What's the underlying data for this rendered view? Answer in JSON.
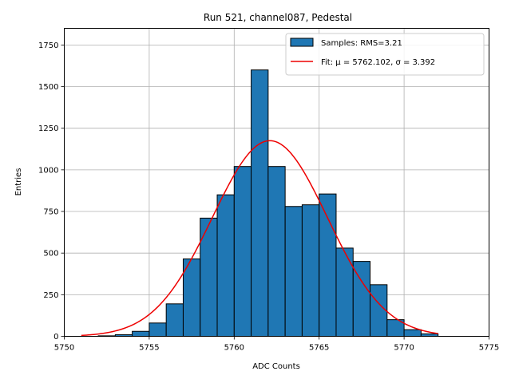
{
  "chart_data": {
    "type": "bar",
    "title": "Run 521, channel087, Pedestal",
    "xlabel": "ADC Counts",
    "ylabel": "Entries",
    "xlim": [
      5750,
      5775
    ],
    "ylim": [
      0,
      1850
    ],
    "xticks": [
      5750,
      5755,
      5760,
      5765,
      5770,
      5775
    ],
    "yticks": [
      0,
      250,
      500,
      750,
      1000,
      1250,
      1500,
      1750
    ],
    "grid": true,
    "legend_position": "top-right",
    "histogram": {
      "name": "Samples: RMS=3.21",
      "color": "#1f77b4",
      "edge_color": "#000000",
      "bin_edges": [
        5752,
        5753,
        5754,
        5755,
        5756,
        5757,
        5758,
        5759,
        5760,
        5761,
        5762,
        5763,
        5764,
        5765,
        5766,
        5767,
        5768,
        5769,
        5770,
        5771,
        5772
      ],
      "counts": [
        3,
        10,
        30,
        80,
        195,
        465,
        710,
        850,
        1020,
        1600,
        1020,
        780,
        790,
        855,
        530,
        450,
        310,
        100,
        40,
        15
      ]
    },
    "fit": {
      "name": "Fit: μ = 5762.102, σ = 3.392",
      "color": "#ee0000",
      "mu": 5762.102,
      "sigma": 3.392,
      "amplitude": 1175,
      "x_range": [
        5751,
        5772
      ]
    }
  }
}
